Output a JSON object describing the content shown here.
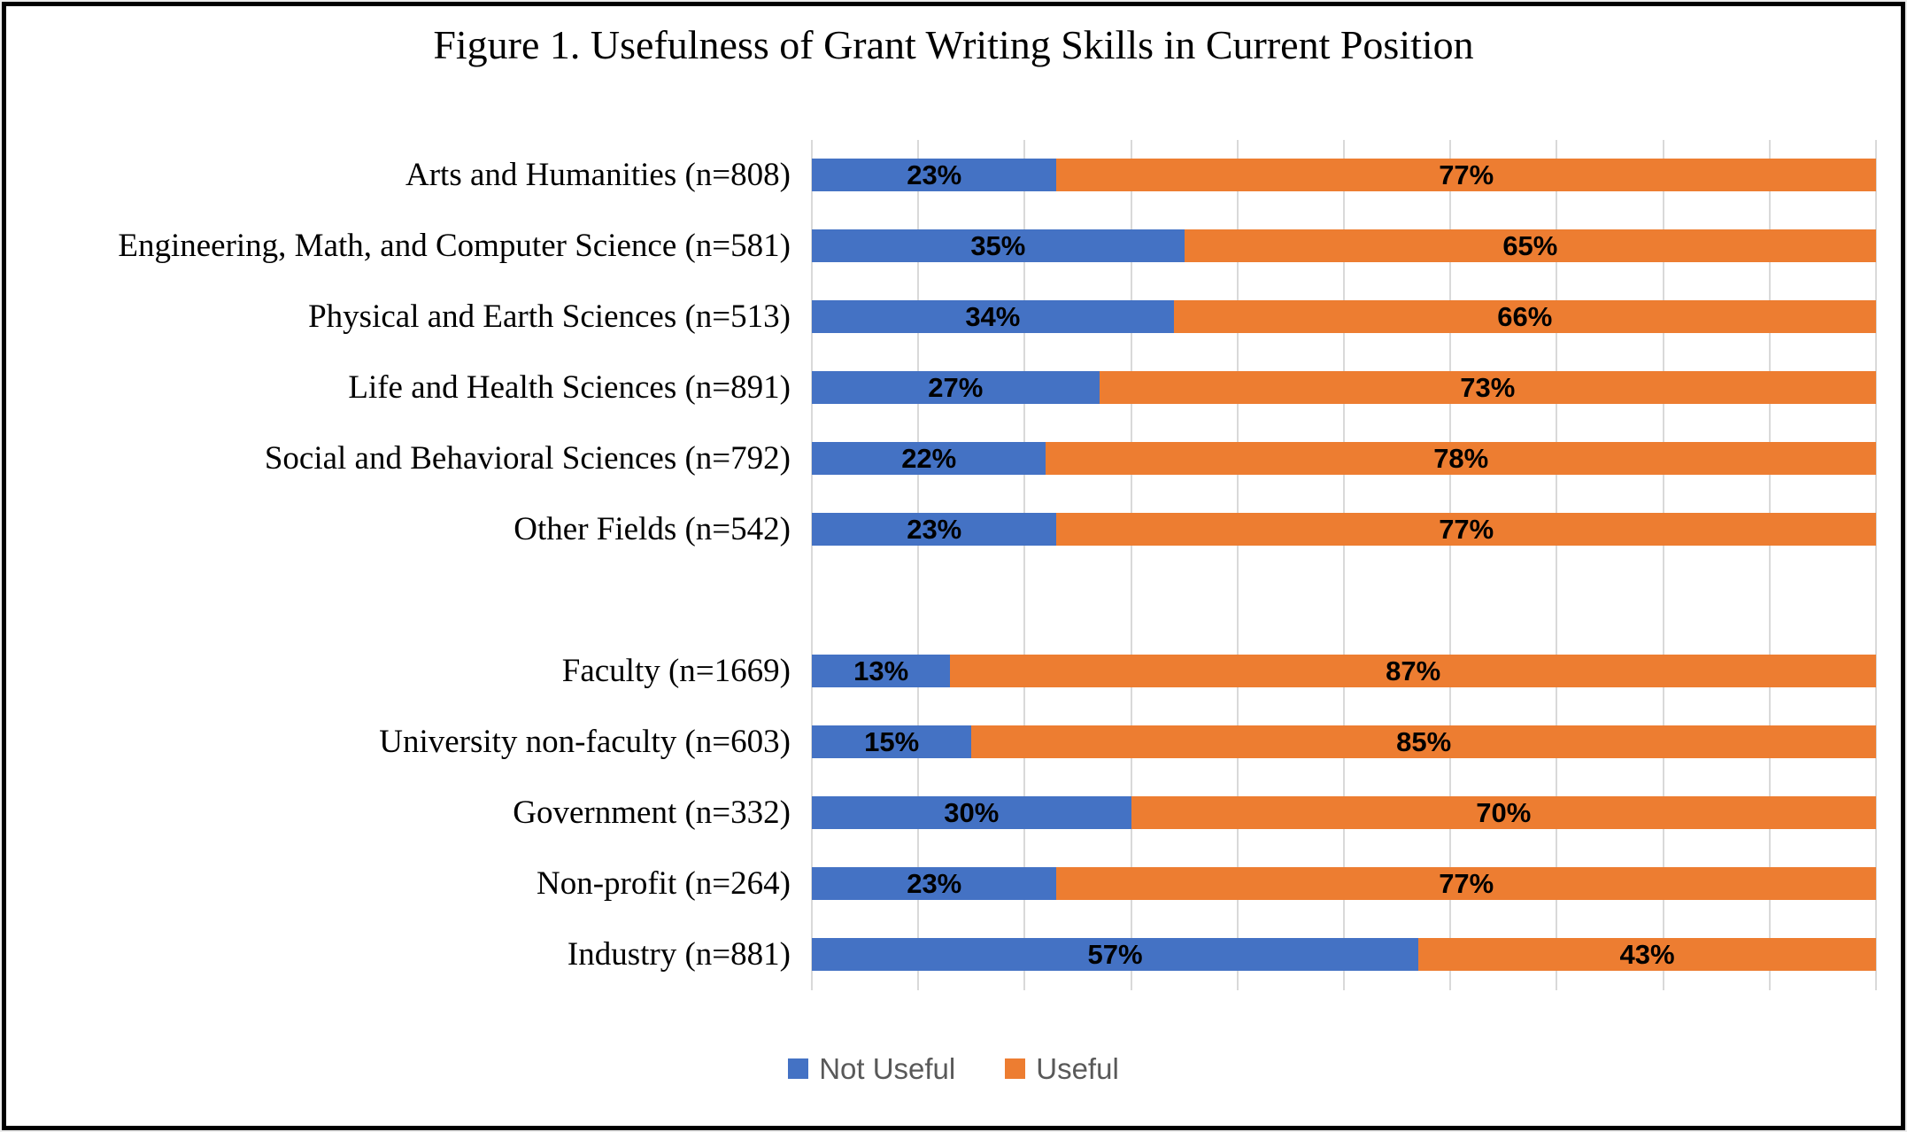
{
  "title": "Figure 1. Usefulness of Grant Writing Skills in Current Position",
  "colors": {
    "not_useful": "#4472C4",
    "useful": "#ED7D31",
    "gridline": "#D9D9D9",
    "legend_text": "#595959",
    "data_label_text": "#000000"
  },
  "legend": {
    "items": [
      {
        "label": "Not Useful",
        "series": "not_useful"
      },
      {
        "label": "Useful",
        "series": "useful"
      }
    ]
  },
  "chart_data": {
    "type": "bar",
    "orientation": "horizontal",
    "stacked": true,
    "units": "percent",
    "title": "Figure 1. Usefulness of Grant Writing Skills in Current Position",
    "xlim": [
      0,
      100
    ],
    "gridline_step_percent": 10,
    "grid": true,
    "axis_tick_labels_visible": false,
    "legend_position": "bottom",
    "series_names": [
      "Not Useful",
      "Useful"
    ],
    "groups": [
      {
        "name": "fields",
        "rows": [
          {
            "category": "Arts and Humanities (n=808)",
            "values": [
              23,
              77
            ],
            "labels": [
              "23%",
              "77%"
            ]
          },
          {
            "category": "Engineering, Math, and Computer Science (n=581)",
            "values": [
              35,
              65
            ],
            "labels": [
              "35%",
              "65%"
            ]
          },
          {
            "category": "Physical and Earth Sciences (n=513)",
            "values": [
              34,
              66
            ],
            "labels": [
              "34%",
              "66%"
            ]
          },
          {
            "category": "Life and Health Sciences (n=891)",
            "values": [
              27,
              73
            ],
            "labels": [
              "27%",
              "73%"
            ]
          },
          {
            "category": "Social and Behavioral Sciences (n=792)",
            "values": [
              22,
              78
            ],
            "labels": [
              "22%",
              "78%"
            ]
          },
          {
            "category": "Other Fields (n=542)",
            "values": [
              23,
              77
            ],
            "labels": [
              "23%",
              "77%"
            ]
          }
        ]
      },
      {
        "name": "positions",
        "rows": [
          {
            "category": "Faculty (n=1669)",
            "values": [
              13,
              87
            ],
            "labels": [
              "13%",
              "87%"
            ]
          },
          {
            "category": "University non-faculty (n=603)",
            "values": [
              15,
              85
            ],
            "labels": [
              "15%",
              "85%"
            ]
          },
          {
            "category": "Government (n=332)",
            "values": [
              30,
              70
            ],
            "labels": [
              "30%",
              "70%"
            ]
          },
          {
            "category": "Non-profit (n=264)",
            "values": [
              23,
              77
            ],
            "labels": [
              "23%",
              "77%"
            ]
          },
          {
            "category": "Industry (n=881)",
            "values": [
              57,
              43
            ],
            "labels": [
              "57%",
              "43%"
            ]
          }
        ]
      }
    ]
  }
}
